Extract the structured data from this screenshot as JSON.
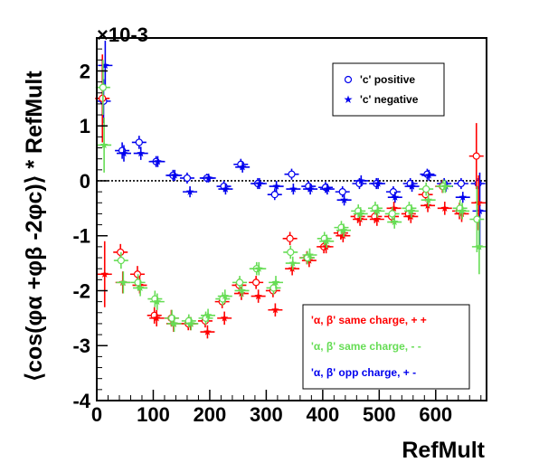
{
  "chart_data": {
    "type": "scatter",
    "title": "",
    "xlabel": "RefMult",
    "ylabel": "⟨cos(φα +φβ -2φc)⟩ * RefMult",
    "y_scale_label": "×10-3",
    "xlim": [
      0,
      690
    ],
    "ylim": [
      -4,
      2.6
    ],
    "x_ticks": [
      0,
      100,
      200,
      300,
      400,
      500,
      600
    ],
    "y_ticks": [
      -4,
      -3,
      -2,
      -1,
      0,
      1,
      2
    ],
    "reference_line": 0,
    "legend_top": {
      "placement": "top-right",
      "entries": [
        "'c' positive",
        "'c' negative"
      ]
    },
    "legend_bottom": {
      "placement": "bottom-right",
      "entries": [
        "'α, β'  same charge, + +",
        "'α, β'  same charge, - -",
        "'α, β'  opp charge, + -"
      ]
    },
    "colors": {
      "same_plus": "#ff0000",
      "same_minus": "#66dd55",
      "opp": "#0000ee",
      "reference_line": "#000000"
    },
    "series": [
      {
        "name": "'α, β'  opp charge, + -",
        "marker": "open-circle",
        "color": "#0000ee",
        "x": [
          12,
          45,
          75,
          105,
          135,
          160,
          195,
          225,
          255,
          285,
          315,
          345,
          375,
          405,
          435,
          465,
          495,
          525,
          555,
          585,
          615,
          645,
          675
        ],
        "y": [
          1.45,
          0.55,
          0.7,
          0.35,
          0.1,
          0.05,
          0.05,
          -0.1,
          0.3,
          -0.05,
          -0.25,
          0.12,
          -0.1,
          -0.12,
          -0.2,
          -0.05,
          -0.05,
          -0.2,
          -0.05,
          0.12,
          -0.05,
          -0.05,
          -0.05
        ],
        "yerr": [
          0.4,
          0.15,
          0.12,
          0.1,
          0.1,
          0.1,
          0.08,
          0.1,
          0.1,
          0.1,
          0.1,
          0.1,
          0.1,
          0.1,
          0.1,
          0.1,
          0.1,
          0.1,
          0.1,
          0.1,
          0.1,
          0.1,
          0.1
        ]
      },
      {
        "name": "",
        "marker": "filled-star",
        "color": "#0000ee",
        "x": [
          15,
          48,
          78,
          108,
          138,
          165,
          198,
          228,
          258,
          288,
          318,
          348,
          378,
          408,
          438,
          468,
          498,
          528,
          558,
          588,
          618,
          648,
          678
        ],
        "y": [
          2.1,
          0.5,
          0.5,
          0.35,
          0.1,
          -0.2,
          0.05,
          -0.15,
          0.25,
          -0.05,
          -0.1,
          -0.15,
          -0.15,
          -0.15,
          -0.35,
          0.0,
          -0.05,
          -0.3,
          -0.1,
          0.1,
          -0.1,
          -0.3,
          -0.55
        ],
        "yerr": [
          0.45,
          0.15,
          0.12,
          0.1,
          0.1,
          0.1,
          0.08,
          0.1,
          0.1,
          0.1,
          0.1,
          0.1,
          0.1,
          0.1,
          0.1,
          0.1,
          0.1,
          0.1,
          0.1,
          0.1,
          0.1,
          0.1,
          0.7
        ]
      },
      {
        "name": "'α, β'  same charge, + +",
        "marker": "open-circle",
        "color": "#ff0000",
        "x": [
          10,
          42,
          72,
          102,
          132,
          162,
          192,
          222,
          252,
          282,
          312,
          342,
          372,
          402,
          432,
          462,
          492,
          522,
          552,
          582,
          612,
          642,
          672
        ],
        "y": [
          1.5,
          -1.3,
          -1.7,
          -2.45,
          -2.5,
          -2.6,
          -2.55,
          -2.2,
          -1.9,
          -1.85,
          -2.0,
          -1.05,
          -1.4,
          -1.2,
          -0.95,
          -0.65,
          -0.65,
          -0.65,
          -0.6,
          -0.25,
          -0.1,
          -0.55,
          0.45
        ],
        "yerr": [
          0.8,
          0.15,
          0.15,
          0.15,
          0.15,
          0.12,
          0.12,
          0.12,
          0.12,
          0.12,
          0.12,
          0.12,
          0.12,
          0.12,
          0.12,
          0.12,
          0.12,
          0.12,
          0.12,
          0.12,
          0.12,
          0.15,
          0.6
        ]
      },
      {
        "name": "",
        "marker": "filled-star",
        "color": "#ff0000",
        "x": [
          14,
          46,
          76,
          106,
          136,
          166,
          196,
          226,
          256,
          286,
          316,
          346,
          376,
          406,
          436,
          466,
          496,
          526,
          556,
          586,
          616,
          646,
          676
        ],
        "y": [
          -1.7,
          -1.85,
          -1.9,
          -2.5,
          -2.6,
          -2.6,
          -2.75,
          -2.5,
          -2.05,
          -2.1,
          -2.35,
          -1.6,
          -1.45,
          -1.2,
          -1.0,
          -0.7,
          -0.7,
          -0.5,
          -0.65,
          -0.45,
          -0.5,
          -0.6,
          -0.4
        ],
        "yerr": [
          0.6,
          0.2,
          0.15,
          0.15,
          0.15,
          0.12,
          0.12,
          0.12,
          0.12,
          0.12,
          0.12,
          0.12,
          0.12,
          0.12,
          0.12,
          0.12,
          0.12,
          0.12,
          0.12,
          0.12,
          0.12,
          0.15,
          0.5
        ]
      },
      {
        "name": "'α, β'  same charge, - -",
        "marker": "open-circle",
        "color": "#66dd55",
        "x": [
          11,
          43,
          73,
          103,
          133,
          163,
          193,
          223,
          253,
          283,
          313,
          343,
          373,
          403,
          433,
          463,
          493,
          523,
          553,
          583,
          613,
          643,
          673
        ],
        "y": [
          1.7,
          -1.45,
          -1.85,
          -2.15,
          -2.5,
          -2.55,
          -2.5,
          -2.15,
          -1.85,
          -1.6,
          -1.95,
          -1.3,
          -1.4,
          -1.05,
          -0.85,
          -0.55,
          -0.5,
          -0.6,
          -0.5,
          -0.15,
          -0.1,
          -0.5,
          -0.7
        ],
        "yerr": [
          0.5,
          0.15,
          0.15,
          0.15,
          0.15,
          0.12,
          0.12,
          0.12,
          0.12,
          0.12,
          0.12,
          0.12,
          0.12,
          0.12,
          0.12,
          0.12,
          0.12,
          0.12,
          0.12,
          0.12,
          0.12,
          0.15,
          0.6
        ]
      },
      {
        "name": "",
        "marker": "filled-star",
        "color": "#66dd55",
        "x": [
          13,
          47,
          77,
          107,
          137,
          167,
          197,
          227,
          257,
          287,
          317,
          347,
          377,
          407,
          437,
          467,
          497,
          527,
          557,
          587,
          617,
          647,
          677
        ],
        "y": [
          0.65,
          -1.85,
          -1.95,
          -2.2,
          -2.6,
          -2.6,
          -2.45,
          -2.1,
          -2.0,
          -1.6,
          -1.85,
          -1.5,
          -1.35,
          -1.1,
          -0.9,
          -0.6,
          -0.55,
          -0.75,
          -0.55,
          -0.35,
          -0.1,
          -0.55,
          -1.2
        ],
        "yerr": [
          0.5,
          0.2,
          0.15,
          0.15,
          0.15,
          0.12,
          0.12,
          0.12,
          0.12,
          0.12,
          0.12,
          0.12,
          0.12,
          0.12,
          0.12,
          0.12,
          0.12,
          0.12,
          0.12,
          0.12,
          0.12,
          0.15,
          0.5
        ]
      }
    ]
  }
}
